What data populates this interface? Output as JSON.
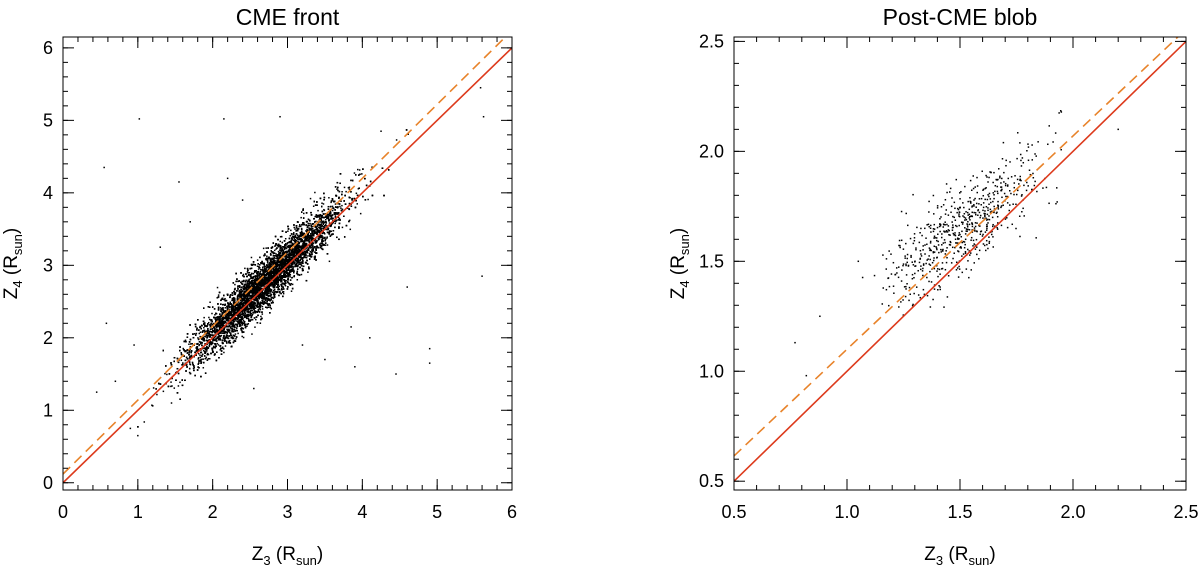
{
  "chart_data": [
    {
      "type": "scatter",
      "title": "CME front",
      "xlabel": {
        "main": "Z",
        "sub": "3",
        "unit_open": " (R",
        "unit_sub": "sun",
        "unit_close": ")"
      },
      "ylabel": {
        "main": "Z",
        "sub": "4",
        "unit_open": " (R",
        "unit_sub": "sun",
        "unit_close": ")"
      },
      "xlim": [
        0,
        6
      ],
      "ylim": [
        -0.1,
        6.15
      ],
      "xticks": [
        0,
        1,
        2,
        3,
        4,
        5,
        6
      ],
      "xtick_labels": [
        "0",
        "1",
        "2",
        "3",
        "4",
        "5",
        "6"
      ],
      "yticks": [
        0,
        1,
        2,
        3,
        4,
        5,
        6
      ],
      "ytick_labels": [
        "0",
        "1",
        "2",
        "3",
        "4",
        "5",
        "6"
      ],
      "x_minor_step": 0.2,
      "y_minor_step": 0.2,
      "grid": false,
      "scatter_cloud": {
        "count": 9000,
        "x_center": 2.7,
        "x_spread": 0.5,
        "x_range": [
          1.0,
          4.8
        ],
        "relation_slope": 1.0,
        "relation_offset": 0.06,
        "y_scatter": 0.17
      },
      "outliers": [
        {
          "x": 0.55,
          "y": 4.35
        },
        {
          "x": 1.02,
          "y": 5.02
        },
        {
          "x": 2.15,
          "y": 5.02
        },
        {
          "x": 2.9,
          "y": 5.05
        },
        {
          "x": 5.58,
          "y": 5.45
        },
        {
          "x": 5.62,
          "y": 5.05
        },
        {
          "x": 5.6,
          "y": 2.85
        },
        {
          "x": 1.55,
          "y": 4.15
        },
        {
          "x": 0.58,
          "y": 2.2
        },
        {
          "x": 0.7,
          "y": 1.4
        },
        {
          "x": 0.9,
          "y": 0.75
        },
        {
          "x": 1.0,
          "y": 0.65
        },
        {
          "x": 4.1,
          "y": 2.0
        },
        {
          "x": 3.9,
          "y": 1.6
        },
        {
          "x": 4.45,
          "y": 1.5
        },
        {
          "x": 4.6,
          "y": 2.7
        },
        {
          "x": 4.9,
          "y": 1.85
        },
        {
          "x": 4.9,
          "y": 1.65
        },
        {
          "x": 3.85,
          "y": 2.15
        },
        {
          "x": 2.55,
          "y": 1.3
        },
        {
          "x": 1.45,
          "y": 1.1
        },
        {
          "x": 0.45,
          "y": 1.25
        },
        {
          "x": 1.3,
          "y": 3.25
        },
        {
          "x": 1.7,
          "y": 3.6
        },
        {
          "x": 2.2,
          "y": 4.2
        },
        {
          "x": 2.4,
          "y": 3.9
        },
        {
          "x": 3.2,
          "y": 1.9
        },
        {
          "x": 3.5,
          "y": 1.7
        },
        {
          "x": 0.95,
          "y": 1.9
        },
        {
          "x": 4.25,
          "y": 4.85
        }
      ],
      "fit_lines": [
        {
          "style": "solid",
          "color": "#dd3a1c",
          "slope": 1.0,
          "intercept": 0.0
        },
        {
          "style": "dashed",
          "color": "#e8832a",
          "slope": 1.02,
          "intercept": 0.12
        }
      ]
    },
    {
      "type": "scatter",
      "title": "Post-CME blob",
      "xlabel": {
        "main": "Z",
        "sub": "3",
        "unit_open": " (R",
        "unit_sub": "sun",
        "unit_close": ")"
      },
      "ylabel": {
        "main": "Z",
        "sub": "4",
        "unit_open": " (R",
        "unit_sub": "sun",
        "unit_close": ")"
      },
      "xlim": [
        0.5,
        2.5
      ],
      "ylim": [
        0.46,
        2.52
      ],
      "xticks": [
        0.5,
        1.0,
        1.5,
        2.0,
        2.5
      ],
      "xtick_labels": [
        "0.5",
        "1.0",
        "1.5",
        "2.0",
        "2.5"
      ],
      "yticks": [
        0.5,
        1.0,
        1.5,
        2.0,
        2.5
      ],
      "ytick_labels": [
        "0.5",
        "1.0",
        "1.5",
        "2.0",
        "2.5"
      ],
      "x_minor_step": 0.1,
      "y_minor_step": 0.1,
      "grid": false,
      "scatter_cloud": {
        "count": 650,
        "x_center": 1.52,
        "x_spread": 0.17,
        "x_range": [
          0.8,
          1.95
        ],
        "relation_slope": 0.75,
        "relation_offset": 0.52,
        "y_scatter": 0.1
      },
      "outliers": [
        {
          "x": 0.77,
          "y": 1.13
        },
        {
          "x": 0.82,
          "y": 0.98
        },
        {
          "x": 2.2,
          "y": 2.1
        },
        {
          "x": 1.05,
          "y": 1.5
        },
        {
          "x": 1.93,
          "y": 1.77
        },
        {
          "x": 0.88,
          "y": 1.25
        }
      ],
      "fit_lines": [
        {
          "style": "solid",
          "color": "#dd3a1c",
          "slope": 1.0,
          "intercept": 0.0
        },
        {
          "style": "dashed",
          "color": "#e8832a",
          "slope": 0.97,
          "intercept": 0.13
        }
      ]
    }
  ]
}
